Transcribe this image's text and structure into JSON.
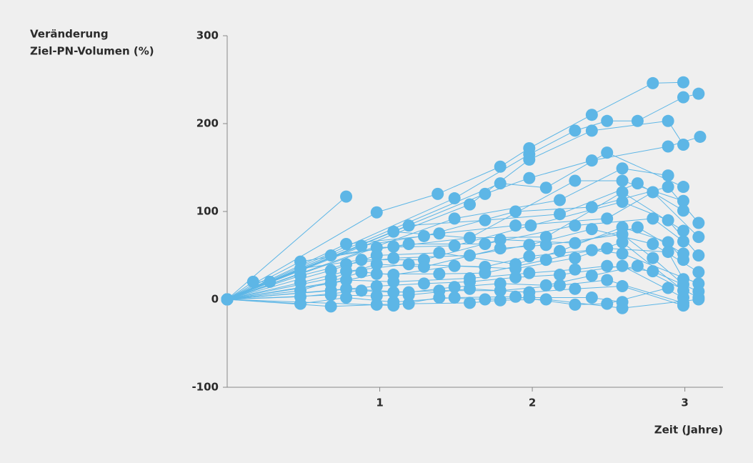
{
  "chart_data": {
    "type": "line",
    "ylabel": [
      "Veränderung",
      "Ziel-PN-Volumen (%)"
    ],
    "xlabel": "Zeit (Jahre)",
    "color": "#5db6e6",
    "xlim": [
      0,
      3.25
    ],
    "xticks": [
      1,
      2,
      3
    ],
    "ylim": [
      -100,
      300
    ],
    "yticks": [
      -100,
      0,
      100,
      200,
      300
    ],
    "series": [
      {
        "x": [
          0,
          0.17,
          0.28
        ],
        "values": [
          0,
          20,
          20
        ]
      },
      {
        "x": [
          0,
          0.78
        ],
        "values": [
          0,
          117
        ]
      },
      {
        "x": [
          0,
          0.98,
          1.38,
          1.79,
          1.98,
          2.39,
          2.79,
          2.99
        ],
        "values": [
          0,
          99,
          120,
          151,
          172,
          210,
          246,
          247
        ]
      },
      {
        "x": [
          0,
          1.49,
          1.98,
          2.28,
          2.49,
          2.69,
          2.99,
          3.09
        ],
        "values": [
          0,
          115,
          165,
          192,
          203,
          203,
          230,
          234
        ]
      },
      {
        "x": [
          0,
          1.59,
          1.98,
          2.39,
          2.89,
          2.99
        ],
        "values": [
          0,
          108,
          159,
          192,
          203,
          176
        ]
      },
      {
        "x": [
          0,
          1.69,
          1.98,
          2.39,
          2.89,
          3.1
        ],
        "values": [
          0,
          120,
          138,
          158,
          174,
          185
        ]
      },
      {
        "x": [
          0,
          1.79,
          2.09,
          2.49,
          2.99
        ],
        "values": [
          0,
          132,
          127,
          167,
          128
        ]
      },
      {
        "x": [
          0,
          1.49,
          2.18,
          2.59,
          2.89
        ],
        "values": [
          0,
          92,
          113,
          149,
          141
        ]
      },
      {
        "x": [
          0,
          1.09,
          1.59,
          2.28,
          2.59,
          2.99
        ],
        "values": [
          0,
          77,
          70,
          135,
          135,
          112
        ]
      },
      {
        "x": [
          0,
          1.19,
          1.69,
          2.18,
          2.69,
          2.99
        ],
        "values": [
          0,
          84,
          90,
          97,
          132,
          101
        ]
      },
      {
        "x": [
          0,
          0.78,
          1.29,
          1.89,
          2.39,
          2.89,
          3.09
        ],
        "values": [
          0,
          63,
          72,
          100,
          105,
          128,
          87
        ]
      },
      {
        "x": [
          0,
          0.88,
          1.39,
          1.89,
          2.49,
          2.79,
          3.09
        ],
        "values": [
          0,
          61,
          75,
          84,
          92,
          122,
          71
        ]
      },
      {
        "x": [
          0,
          0.98,
          1.49,
          1.99,
          2.59,
          2.89,
          3.09
        ],
        "values": [
          0,
          59,
          61,
          84,
          111,
          90,
          50
        ]
      },
      {
        "x": [
          0,
          0.68,
          1.09,
          1.59,
          2.09,
          2.59,
          2.99
        ],
        "values": [
          0,
          50,
          60,
          70,
          71,
          122,
          78
        ]
      },
      {
        "x": [
          0,
          0.48,
          1.19,
          1.69,
          2.28,
          2.79,
          2.99
        ],
        "values": [
          0,
          43,
          63,
          63,
          84,
          92,
          66
        ]
      },
      {
        "x": [
          0,
          0.48,
          0.88,
          1.29,
          1.79,
          2.28,
          2.69,
          2.99
        ],
        "values": [
          0,
          35,
          45,
          45,
          68,
          64,
          82,
          52
        ]
      },
      {
        "x": [
          0,
          0.48,
          0.78,
          1.09,
          1.59,
          1.98,
          2.39,
          2.79,
          3.09
        ],
        "values": [
          0,
          27,
          40,
          47,
          50,
          62,
          80,
          63,
          31
        ]
      },
      {
        "x": [
          0,
          0.68,
          0.98,
          1.39,
          1.89,
          2.18,
          2.59,
          2.89,
          2.99
        ],
        "values": [
          0,
          33,
          50,
          53,
          40,
          55,
          82,
          65,
          45
        ]
      },
      {
        "x": [
          0,
          0.48,
          0.78,
          1.19,
          1.69,
          1.98,
          2.49,
          2.89,
          2.99
        ],
        "values": [
          0,
          19,
          32,
          40,
          37,
          49,
          58,
          54,
          23
        ]
      },
      {
        "x": [
          0,
          0.68,
          0.98,
          1.29,
          1.79,
          2.09,
          2.59,
          2.79,
          2.99
        ],
        "values": [
          0,
          24,
          40,
          37,
          58,
          62,
          74,
          47,
          17
        ]
      },
      {
        "x": [
          0,
          0.48,
          0.88,
          1.09,
          1.49,
          1.89,
          2.28,
          2.59,
          2.99
        ],
        "values": [
          0,
          10,
          31,
          28,
          38,
          35,
          47,
          65,
          10
        ]
      },
      {
        "x": [
          0,
          0.68,
          0.98,
          1.39,
          1.69,
          2.09,
          2.39,
          2.59,
          3.09
        ],
        "values": [
          0,
          18,
          29,
          29,
          30,
          45,
          56,
          52,
          18
        ]
      },
      {
        "x": [
          0,
          0.78,
          1.09,
          1.59,
          1.98,
          2.28,
          2.49,
          2.79,
          3.09
        ],
        "values": [
          0,
          22,
          20,
          24,
          30,
          34,
          38,
          32,
          9
        ]
      },
      {
        "x": [
          0,
          0.68,
          0.98,
          1.29,
          1.59,
          1.89,
          2.18,
          2.59,
          2.99
        ],
        "values": [
          0,
          10,
          15,
          18,
          20,
          25,
          28,
          38,
          2
        ]
      },
      {
        "x": [
          0,
          0.78,
          1.19,
          1.49,
          1.79,
          2.09,
          2.39,
          2.69,
          3.09
        ],
        "values": [
          0,
          12,
          8,
          14,
          18,
          16,
          27,
          38,
          2
        ]
      },
      {
        "x": [
          0,
          0.48,
          0.88,
          1.09,
          1.39,
          1.79,
          2.18,
          2.49,
          2.99
        ],
        "values": [
          0,
          3,
          10,
          8,
          10,
          10,
          16,
          22,
          -4
        ]
      },
      {
        "x": [
          0,
          0.68,
          0.98,
          1.19,
          1.59,
          1.98,
          2.28,
          2.59,
          2.99
        ],
        "values": [
          0,
          5,
          4,
          5,
          12,
          8,
          12,
          15,
          -7
        ]
      },
      {
        "x": [
          0,
          0.48,
          0.78,
          1.09,
          1.49,
          1.89,
          2.28,
          2.49,
          2.89
        ],
        "values": [
          0,
          -5,
          2,
          -3,
          2,
          3,
          -6,
          -5,
          13
        ]
      },
      {
        "x": [
          0,
          0.68,
          0.98,
          1.19,
          1.59,
          1.79,
          2.09,
          2.59,
          3.09
        ],
        "values": [
          0,
          -8,
          -6,
          -5,
          -4,
          -1,
          0,
          -10,
          0
        ]
      },
      {
        "x": [
          0,
          1.09,
          1.39,
          1.69,
          1.98,
          2.39,
          2.59
        ],
        "values": [
          0,
          -7,
          2,
          0,
          2,
          2,
          -3
        ]
      }
    ]
  }
}
